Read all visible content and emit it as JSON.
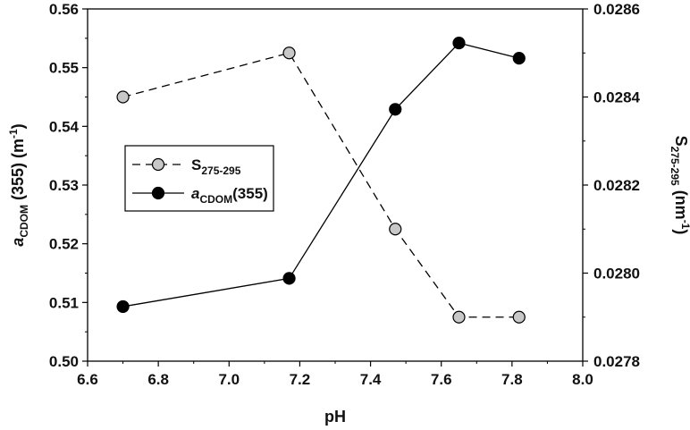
{
  "chart_data": {
    "type": "line",
    "xlabel": "pH",
    "ylabel_left": {
      "prefix": "a",
      "sub": "CDOM",
      "suffix": " (355) (m",
      "sup": "-1",
      "end": ")"
    },
    "ylabel_right": {
      "prefix": "S",
      "sub": "275-295",
      "suffix": " (nm",
      "sup": "-1",
      "end": ")"
    },
    "xlim": [
      6.6,
      8.0
    ],
    "ylim_left": [
      0.5,
      0.56
    ],
    "ylim_right": [
      0.0278,
      0.0286
    ],
    "x_ticks": [
      "6.6",
      "6.8",
      "7.0",
      "7.2",
      "7.4",
      "7.6",
      "7.8",
      "8.0"
    ],
    "y_left_ticks": [
      "0.50",
      "0.51",
      "0.52",
      "0.53",
      "0.54",
      "0.55",
      "0.56"
    ],
    "y_right_ticks": [
      "0.0278",
      "0.0280",
      "0.0282",
      "0.0284",
      "0.0286"
    ],
    "legend_position": "left-middle",
    "series": [
      {
        "name": "S275-295",
        "label": {
          "main": "S",
          "sub": "275-295",
          "italic": false
        },
        "axis": "right",
        "style": "dashed",
        "marker_fill": "#c8c8c8",
        "x": [
          6.7,
          7.17,
          7.47,
          7.65,
          7.82
        ],
        "y": [
          0.0284,
          0.0285,
          0.0281,
          0.0279,
          0.0279
        ]
      },
      {
        "name": "aCDOM(355)",
        "label": {
          "main": "a",
          "sub": "CDOM",
          "after": "(355)",
          "italic": true
        },
        "axis": "left",
        "style": "solid",
        "marker_fill": "#000000",
        "x": [
          6.7,
          7.17,
          7.47,
          7.65,
          7.82
        ],
        "y": [
          0.5093,
          0.5141,
          0.5429,
          0.5542,
          0.5516
        ]
      }
    ]
  }
}
